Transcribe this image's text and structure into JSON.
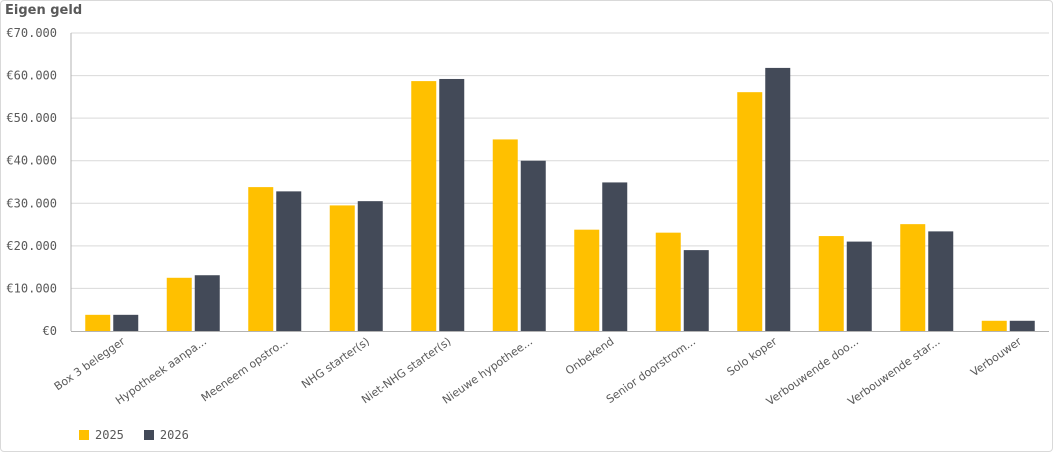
{
  "title": "Eigen geld",
  "chart_data": {
    "type": "bar",
    "title": "Eigen geld",
    "xlabel": "",
    "ylabel": "",
    "ylim": [
      0,
      70000
    ],
    "yticks": [
      0,
      10000,
      20000,
      30000,
      40000,
      50000,
      60000,
      70000
    ],
    "ytick_labels": [
      "€0",
      "€10.000",
      "€20.000",
      "€30.000",
      "€40.000",
      "€50.000",
      "€60.000",
      "€70.000"
    ],
    "grid": true,
    "legend_position": "bottom-left",
    "categories": [
      "Box 3 belegger",
      "Hypotheek aanpa...",
      "Meeneem opstro...",
      "NHG starter(s)",
      "Niet-NHG starter(s)",
      "Nieuwe hypothee...",
      "Onbekend",
      "Senior doorstrom...",
      "Solo koper",
      "Verbouwende doo...",
      "Verbouwende star...",
      "Verbouwer"
    ],
    "series": [
      {
        "name": "2025",
        "color": "#ffc000",
        "values": [
          3800,
          12500,
          33800,
          29500,
          58700,
          45000,
          23800,
          23100,
          56100,
          22300,
          25100,
          2400
        ]
      },
      {
        "name": "2026",
        "color": "#434a58",
        "values": [
          3800,
          13100,
          32800,
          30500,
          59200,
          40000,
          34900,
          19000,
          61800,
          21000,
          23400,
          2400
        ]
      }
    ]
  }
}
